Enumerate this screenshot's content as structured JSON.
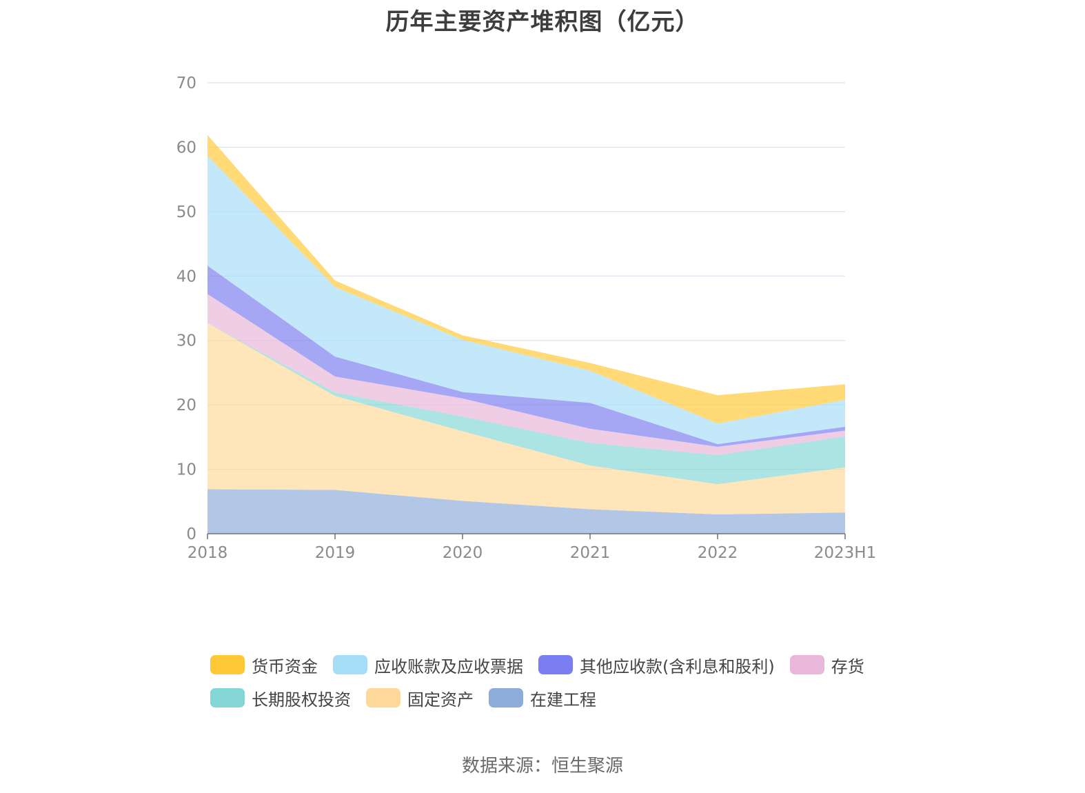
{
  "chart_data": {
    "type": "area",
    "stacked": true,
    "title": "历年主要资产堆积图（亿元）",
    "categories": [
      "2018",
      "2019",
      "2020",
      "2021",
      "2022",
      "2023H1"
    ],
    "ylim": [
      0,
      70
    ],
    "yticks": [
      0,
      10,
      20,
      30,
      40,
      50,
      60,
      70
    ],
    "xlabel": "",
    "ylabel": "",
    "grid": true,
    "legend_position": "bottom",
    "series": [
      {
        "name": "在建工程",
        "color": "#8eacd9",
        "values": [
          6.9,
          6.8,
          5.1,
          3.8,
          3.0,
          3.3
        ]
      },
      {
        "name": "固定资产",
        "color": "#fdd89a",
        "values": [
          25.8,
          14.6,
          10.8,
          6.8,
          4.7,
          7.0
        ]
      },
      {
        "name": "长期股权投资",
        "color": "#84d6d6",
        "values": [
          0.0,
          0.5,
          2.3,
          3.5,
          4.5,
          4.8
        ]
      },
      {
        "name": "存货",
        "color": "#e8b7d9",
        "values": [
          4.5,
          2.5,
          2.8,
          2.2,
          1.3,
          0.9
        ]
      },
      {
        "name": "其他应收款(含利息和股利)",
        "color": "#7b7ef0",
        "values": [
          4.4,
          3.1,
          1.0,
          4.0,
          0.4,
          0.6
        ]
      },
      {
        "name": "应收账款及应收票据",
        "color": "#a5ddf7",
        "values": [
          17.1,
          10.8,
          8.1,
          5.0,
          3.2,
          4.2
        ]
      },
      {
        "name": "货币资金",
        "color": "#ffc837",
        "values": [
          3.2,
          1.0,
          0.7,
          1.2,
          4.4,
          2.4
        ]
      }
    ]
  },
  "legend": {
    "rows": [
      [
        "货币资金",
        "应收账款及应收票据",
        "其他应收款(含利息和股利)",
        "存货"
      ],
      [
        "长期股权投资",
        "固定资产",
        "在建工程"
      ]
    ]
  },
  "source_note": "数据来源：恒生聚源"
}
